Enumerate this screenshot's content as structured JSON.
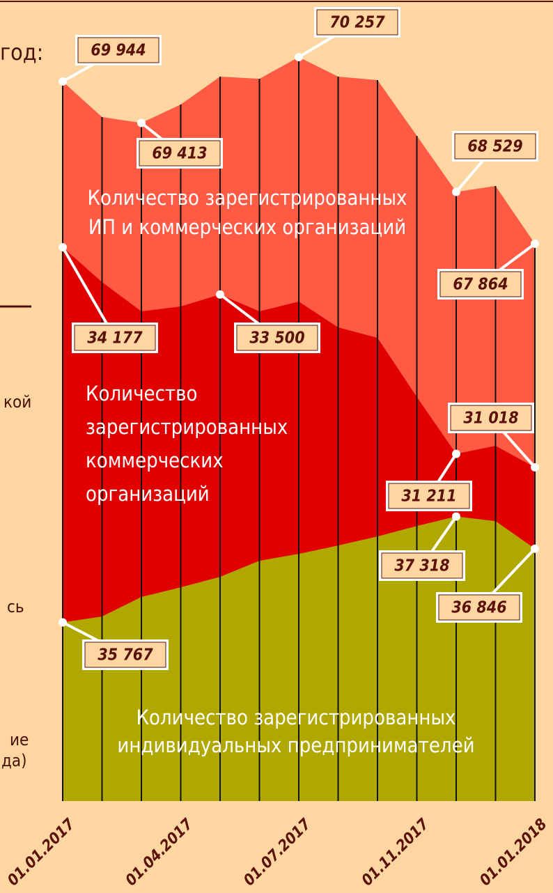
{
  "chart_data": {
    "type": "area",
    "fragments": [
      "год:",
      "кой",
      "сь",
      "ие",
      "да)"
    ],
    "categories": [
      "01.01.2017",
      null,
      null,
      "01.04.2017",
      null,
      null,
      "01.07.2017",
      null,
      null,
      "01.11.2017",
      null,
      null,
      "01.01.2018"
    ],
    "series": [
      {
        "name_lines": [
          "Количество зарегистрированных",
          "ИП и коммерческих организаций"
        ],
        "color": "#ff5a44",
        "ylim": [
          60719,
          70453
        ],
        "values": [
          69944,
          69488,
          69413,
          69649,
          70006,
          69979,
          70257,
          70006,
          69962,
          69247,
          68529,
          68604,
          67864
        ],
        "value_labels": {
          "0": "69 944",
          "2": "69 413",
          "6": "70 257",
          "10": "68 529",
          "12": "67 864"
        }
      },
      {
        "name_lines": [
          "Количество",
          "зарегистрированных",
          "коммерческих",
          "организаций"
        ],
        "color": "#e00000",
        "ylim": [
          26227,
          37127
        ],
        "values": [
          34177,
          33677,
          33257,
          33327,
          33500,
          33257,
          33397,
          33027,
          32877,
          32027,
          31211,
          31327,
          31018
        ],
        "value_labels": {
          "0": "34 177",
          "4": "33 500",
          "10": "31 211",
          "12": "31 018"
        }
      },
      {
        "name_lines": [
          "Количество зарегистрированных",
          "индивидуальных предпринимателей"
        ],
        "color": "#b0a700",
        "ylim": [
          33150,
          44270
        ],
        "values": [
          35767,
          35853,
          36139,
          36281,
          36434,
          36669,
          36771,
          36893,
          37026,
          37179,
          37318,
          37250,
          36846
        ],
        "value_labels": {
          "0": "35 767",
          "10": "37 318",
          "12": "36 846"
        }
      }
    ]
  }
}
